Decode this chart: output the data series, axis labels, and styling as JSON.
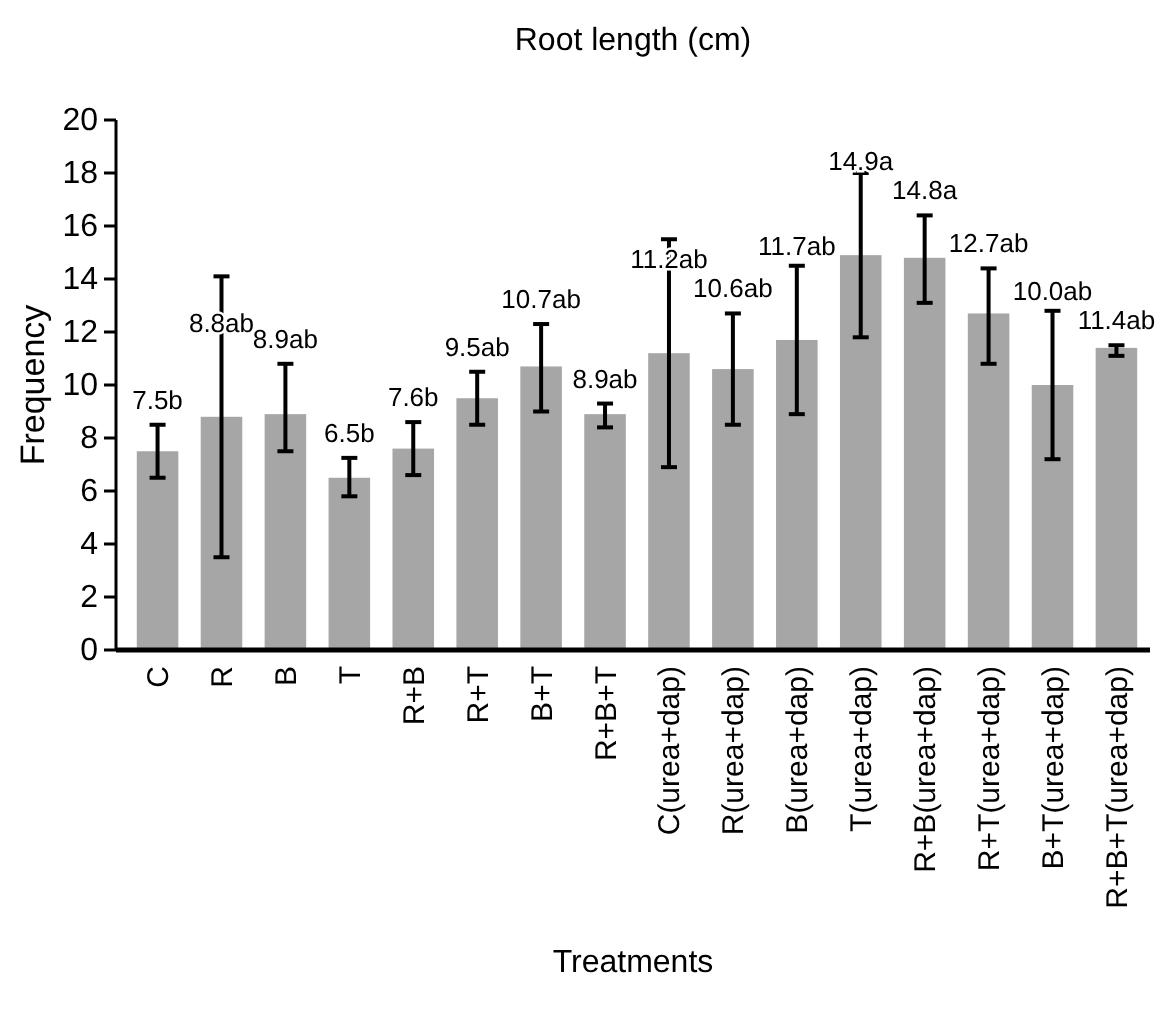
{
  "chart_data": {
    "type": "bar",
    "title": "Root length (cm)",
    "xlabel": "Treatments",
    "ylabel": "Frequency",
    "categories": [
      "C",
      "R",
      "B",
      "T",
      "R+B",
      "R+T",
      "B+T",
      "R+B+T",
      "C(urea+dap)",
      "R(urea+dap)",
      "B(urea+dap)",
      "T(urea+dap)",
      "R+B(urea+dap)",
      "R+T(urea+dap)",
      "B+T(urea+dap)",
      "R+B+T(urea+dap)"
    ],
    "values": [
      7.5,
      8.8,
      8.9,
      6.5,
      7.6,
      9.5,
      10.7,
      8.9,
      11.2,
      10.6,
      11.7,
      14.9,
      14.8,
      12.7,
      10.0,
      11.4
    ],
    "value_labels": [
      "7.5b",
      "8.8ab",
      "8.9ab",
      "6.5b",
      "7.6b",
      "9.5ab",
      "10.7ab",
      "8.9ab",
      "11.2ab",
      "10.6ab",
      "11.7ab",
      "14.9a",
      "14.8a",
      "12.7ab",
      "10.0ab",
      "11.4ab"
    ],
    "errors": [
      [
        6.5,
        8.5
      ],
      [
        3.5,
        14.1
      ],
      [
        7.5,
        10.8
      ],
      [
        5.8,
        7.25
      ],
      [
        6.6,
        8.6
      ],
      [
        8.5,
        10.5
      ],
      [
        9.0,
        12.3
      ],
      [
        8.4,
        9.3
      ],
      [
        6.9,
        15.5
      ],
      [
        8.5,
        12.7
      ],
      [
        8.9,
        14.5
      ],
      [
        11.8,
        18.0
      ],
      [
        13.1,
        16.4
      ],
      [
        10.8,
        14.4
      ],
      [
        7.2,
        12.8
      ],
      [
        11.1,
        11.5
      ]
    ],
    "color": "#a6a6a6",
    "ylim": [
      0,
      20
    ],
    "yticks": [
      0,
      2,
      4,
      6,
      8,
      10,
      12,
      14,
      16,
      18,
      20
    ],
    "grid": false,
    "legend": false
  }
}
